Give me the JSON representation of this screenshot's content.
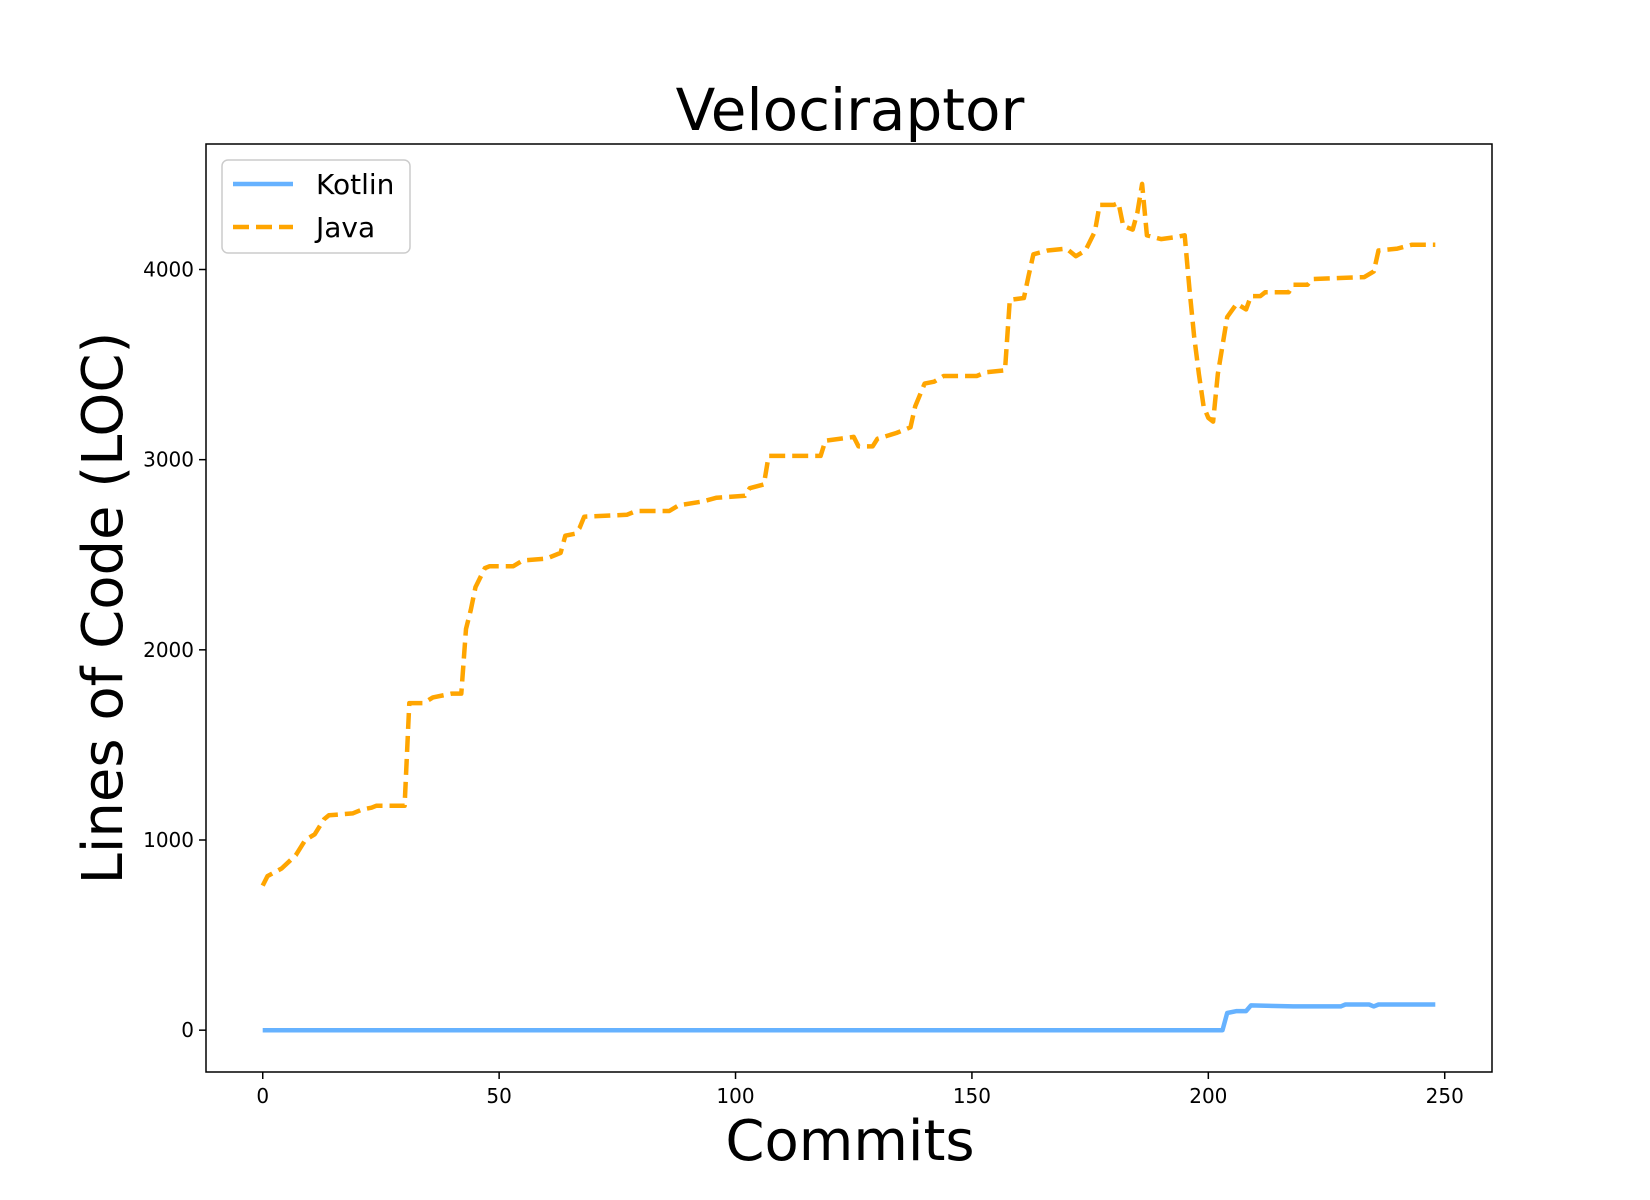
{
  "chart_data": {
    "type": "line",
    "title": "Velociraptor",
    "xlabel": "Commits",
    "ylabel": "Lines of Code (LOC)",
    "xlim": [
      -12,
      260
    ],
    "ylim": [
      -220,
      4660
    ],
    "xticks": [
      0,
      50,
      100,
      150,
      200,
      250
    ],
    "yticks": [
      0,
      1000,
      2000,
      3000,
      4000
    ],
    "legend": "top-left",
    "grid": false,
    "series": [
      {
        "name": "Kotlin",
        "color": "#66b2ff",
        "style": "solid",
        "points": [
          [
            0,
            0
          ],
          [
            203,
            0
          ],
          [
            204,
            90
          ],
          [
            206,
            100
          ],
          [
            208,
            100
          ],
          [
            209,
            130
          ],
          [
            218,
            125
          ],
          [
            228,
            125
          ],
          [
            229,
            135
          ],
          [
            234,
            135
          ],
          [
            235,
            125
          ],
          [
            236,
            135
          ],
          [
            248,
            135
          ]
        ]
      },
      {
        "name": "Java",
        "color": "#ffa500",
        "style": "dashed",
        "points": [
          [
            0,
            760
          ],
          [
            1,
            810
          ],
          [
            4,
            850
          ],
          [
            7,
            920
          ],
          [
            9,
            1000
          ],
          [
            11,
            1030
          ],
          [
            13,
            1110
          ],
          [
            14,
            1130
          ],
          [
            19,
            1140
          ],
          [
            21,
            1160
          ],
          [
            23,
            1170
          ],
          [
            24,
            1180
          ],
          [
            30,
            1180
          ],
          [
            31,
            1720
          ],
          [
            34,
            1720
          ],
          [
            36,
            1750
          ],
          [
            40,
            1770
          ],
          [
            42,
            1770
          ],
          [
            43,
            2110
          ],
          [
            44,
            2210
          ],
          [
            45,
            2330
          ],
          [
            47,
            2430
          ],
          [
            48,
            2440
          ],
          [
            53,
            2440
          ],
          [
            55,
            2470
          ],
          [
            60,
            2480
          ],
          [
            63,
            2510
          ],
          [
            64,
            2600
          ],
          [
            66,
            2610
          ],
          [
            67,
            2640
          ],
          [
            68,
            2700
          ],
          [
            77,
            2710
          ],
          [
            79,
            2730
          ],
          [
            86,
            2730
          ],
          [
            88,
            2760
          ],
          [
            93,
            2780
          ],
          [
            96,
            2800
          ],
          [
            102,
            2810
          ],
          [
            103,
            2850
          ],
          [
            106,
            2870
          ],
          [
            107,
            3020
          ],
          [
            118,
            3020
          ],
          [
            119,
            3100
          ],
          [
            125,
            3120
          ],
          [
            126,
            3070
          ],
          [
            129,
            3070
          ],
          [
            130,
            3110
          ],
          [
            134,
            3140
          ],
          [
            137,
            3170
          ],
          [
            138,
            3280
          ],
          [
            140,
            3400
          ],
          [
            142,
            3410
          ],
          [
            144,
            3440
          ],
          [
            151,
            3440
          ],
          [
            153,
            3460
          ],
          [
            157,
            3470
          ],
          [
            158,
            3840
          ],
          [
            161,
            3850
          ],
          [
            162,
            3970
          ],
          [
            163,
            4080
          ],
          [
            166,
            4100
          ],
          [
            170,
            4110
          ],
          [
            172,
            4070
          ],
          [
            174,
            4100
          ],
          [
            176,
            4200
          ],
          [
            177,
            4340
          ],
          [
            180,
            4340
          ],
          [
            181,
            4350
          ],
          [
            182,
            4230
          ],
          [
            184,
            4210
          ],
          [
            185,
            4300
          ],
          [
            186,
            4450
          ],
          [
            187,
            4180
          ],
          [
            190,
            4160
          ],
          [
            193,
            4170
          ],
          [
            195,
            4180
          ],
          [
            196,
            3900
          ],
          [
            197,
            3650
          ],
          [
            198,
            3450
          ],
          [
            199,
            3280
          ],
          [
            200,
            3220
          ],
          [
            201,
            3200
          ],
          [
            202,
            3450
          ],
          [
            203,
            3600
          ],
          [
            204,
            3750
          ],
          [
            206,
            3820
          ],
          [
            208,
            3790
          ],
          [
            209,
            3860
          ],
          [
            211,
            3860
          ],
          [
            212,
            3880
          ],
          [
            217,
            3880
          ],
          [
            218,
            3920
          ],
          [
            221,
            3920
          ],
          [
            222,
            3950
          ],
          [
            233,
            3960
          ],
          [
            235,
            3990
          ],
          [
            236,
            4100
          ],
          [
            240,
            4110
          ],
          [
            243,
            4130
          ],
          [
            248,
            4130
          ]
        ]
      }
    ]
  }
}
